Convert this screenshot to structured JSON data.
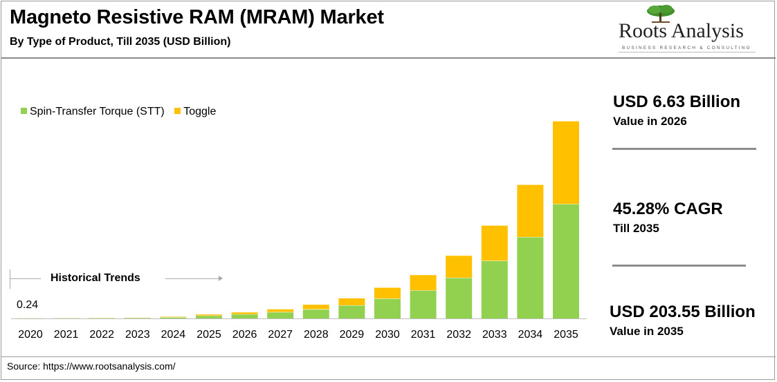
{
  "header": {
    "title": "Magneto Resistive RAM (MRAM) Market",
    "subtitle": "By Type of Product, Till 2035 (USD Billion)"
  },
  "logo": {
    "name": "Roots Analysis",
    "tagline": "BUSINESS RESEARCH & CONSULTING",
    "tree-icon": "tree-icon"
  },
  "legend": {
    "items": [
      {
        "label": "Spin-Transfer Torque (STT)",
        "color": "#92d050"
      },
      {
        "label": "Toggle",
        "color": "#ffc000"
      }
    ]
  },
  "annotation": {
    "historical_trends": "Historical Trends",
    "first_value": "0.24"
  },
  "kpis": [
    {
      "main": "USD 6.63 Billion",
      "sub": "Value in 2026"
    },
    {
      "main": "45.28% CAGR",
      "sub": "Till 2035"
    },
    {
      "main": "USD 203.55 Billion",
      "sub": "Value in 2035"
    }
  ],
  "footer": {
    "source": "Source: https://www.rootsanalysis.com/"
  },
  "chart_data": {
    "type": "bar",
    "stacked": true,
    "categories": [
      "2020",
      "2021",
      "2022",
      "2023",
      "2024",
      "2025",
      "2026",
      "2027",
      "2028",
      "2029",
      "2030",
      "2031",
      "2032",
      "2033",
      "2034",
      "2035"
    ],
    "series": [
      {
        "name": "Spin-Transfer Torque (STT)",
        "color": "#92d050",
        "values": [
          0.15,
          0.22,
          0.32,
          0.46,
          1.3,
          3.0,
          4.4,
          6.6,
          9.5,
          13.6,
          20.5,
          29.0,
          42.0,
          59.5,
          84.0,
          118.0
        ]
      },
      {
        "name": "Toggle",
        "color": "#ffc000",
        "values": [
          0.09,
          0.1,
          0.12,
          0.14,
          0.5,
          1.5,
          2.23,
          3.2,
          5.0,
          7.5,
          11.5,
          16.0,
          23.0,
          36.5,
          54.0,
          85.55
        ]
      }
    ],
    "title": "Magneto Resistive RAM (MRAM) Market",
    "ylim": [
      0,
      210
    ],
    "axis_color": "#bfbfbf"
  }
}
